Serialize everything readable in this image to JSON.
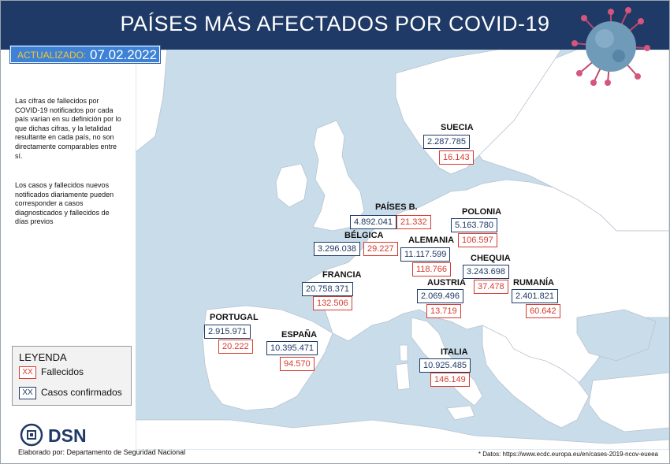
{
  "title": "PAÍSES MÁS AFECTADOS POR COVID-19",
  "updated": {
    "label": "ACTUALIZADO:",
    "date": "07.02.2022"
  },
  "notes": [
    "Las cifras de fallecidos por COVID-19 notificados por cada país varían en su definición por lo que dichas cifras, y la letalidad resultante en cada país, no son directamente comparables entre sí.",
    "Los casos y fallecidos nuevos notificados diariamente pueden corresponder a casos diagnosticados y fallecidos de días previos"
  ],
  "legend": {
    "title": "LEYENDA",
    "placeholder": "XX",
    "deaths_label": "Fallecidos",
    "cases_label": "Casos confirmados",
    "colors": {
      "deaths": "#d63b2f",
      "cases": "#1f3a66"
    }
  },
  "countries": [
    {
      "name": "SUECIA",
      "cases": "2.287.785",
      "deaths": "16.143"
    },
    {
      "name": "PAÍSES B.",
      "cases": "4.892.041",
      "deaths": "21.332"
    },
    {
      "name": "POLONIA",
      "cases": "5.163.780",
      "deaths": "106.597"
    },
    {
      "name": "BÉLGICA",
      "cases": "3.296.038",
      "deaths": "29.227"
    },
    {
      "name": "ALEMANIA",
      "cases": "11.117.599",
      "deaths": "118.766"
    },
    {
      "name": "CHEQUIA",
      "cases": "3.243.698",
      "deaths": "37.478"
    },
    {
      "name": "FRANCIA",
      "cases": "20.758.371",
      "deaths": "132.506"
    },
    {
      "name": "AUSTRIA",
      "cases": "2.069.496",
      "deaths": "13.719"
    },
    {
      "name": "RUMANÍA",
      "cases": "2.401.821",
      "deaths": "60.642"
    },
    {
      "name": "PORTUGAL",
      "cases": "2.915.971",
      "deaths": "20.222"
    },
    {
      "name": "ESPAÑA",
      "cases": "10.395.471",
      "deaths": "94.570"
    },
    {
      "name": "ITALIA",
      "cases": "10.925.485",
      "deaths": "146.149"
    }
  ],
  "brand": {
    "logo_text": "DSN",
    "credit": "Elaborado por: Departamento de Seguridad Nacional"
  },
  "source": "* Datos: https://www.ecdc.europa.eu/en/cases-2019-ncov-eueea"
}
